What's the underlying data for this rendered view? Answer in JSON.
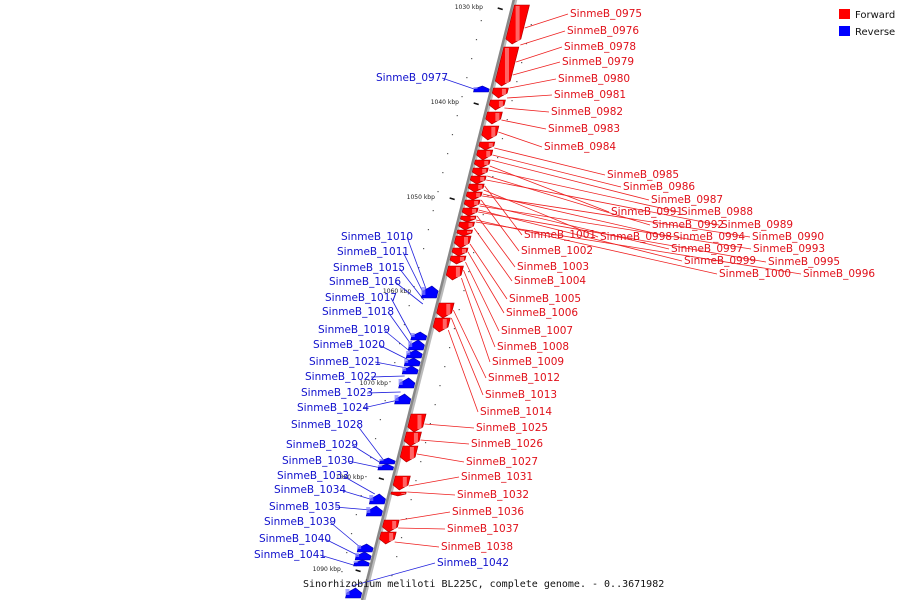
{
  "caption": "Sinorhizobium meliloti BL225C, complete genome. - 0..3671982",
  "legend": [
    {
      "label": "Forward",
      "color": "#ff0000"
    },
    {
      "label": "Reverse",
      "color": "#0000ff"
    }
  ],
  "colors": {
    "forward": "#ff0000",
    "reverse": "#0000ff",
    "forward_label": "#e0101a",
    "reverse_label": "#1010cc",
    "backbone": "#888888"
  },
  "ticks": [
    {
      "kbp": 1030,
      "label": "1030 kbp"
    },
    {
      "kbp": 1040,
      "label": "1040 kbp"
    },
    {
      "kbp": 1050,
      "label": "1050 kbp"
    },
    {
      "kbp": 1060,
      "label": "1060 kbp"
    },
    {
      "kbp": 1070,
      "label": "1070 kbp"
    },
    {
      "kbp": 1080,
      "label": "1080 kbp"
    },
    {
      "kbp": 1090,
      "label": "1090 kbp"
    }
  ],
  "forward_genes": [
    "SinmeB_0975",
    "SinmeB_0976",
    "SinmeB_0978",
    "SinmeB_0979",
    "SinmeB_0980",
    "SinmeB_0981",
    "SinmeB_0982",
    "SinmeB_0983",
    "SinmeB_0984",
    "SinmeB_0985",
    "SinmeB_0986",
    "SinmeB_0987",
    "SinmeB_0991",
    "SinmeB_0988",
    "SinmeB_0992",
    "SinmeB_0989",
    "SinmeB_1001",
    "SinmeB_0998",
    "SinmeB_0994",
    "SinmeB_0990",
    "SinmeB_1002",
    "SinmeB_0997",
    "SinmeB_0993",
    "SinmeB_0999",
    "SinmeB_0995",
    "SinmeB_1003",
    "SinmeB_1000",
    "SinmeB_0996",
    "SinmeB_1004",
    "SinmeB_1005",
    "SinmeB_1006",
    "SinmeB_1007",
    "SinmeB_1008",
    "SinmeB_1009",
    "SinmeB_1012",
    "SinmeB_1013",
    "SinmeB_1014",
    "SinmeB_1025",
    "SinmeB_1026",
    "SinmeB_1027",
    "SinmeB_1031",
    "SinmeB_1032",
    "SinmeB_1036",
    "SinmeB_1037",
    "SinmeB_1038"
  ],
  "reverse_genes": [
    "SinmeB_0977",
    "SinmeB_1010",
    "SinmeB_1011",
    "SinmeB_1015",
    "SinmeB_1016",
    "SinmeB_1017",
    "SinmeB_1018",
    "SinmeB_1019",
    "SinmeB_1020",
    "SinmeB_1021",
    "SinmeB_1022",
    "SinmeB_1023",
    "SinmeB_1024",
    "SinmeB_1028",
    "SinmeB_1029",
    "SinmeB_1030",
    "SinmeB_1033",
    "SinmeB_1034",
    "SinmeB_1035",
    "SinmeB_1039",
    "SinmeB_1040",
    "SinmeB_1041",
    "SinmeB_1042"
  ]
}
